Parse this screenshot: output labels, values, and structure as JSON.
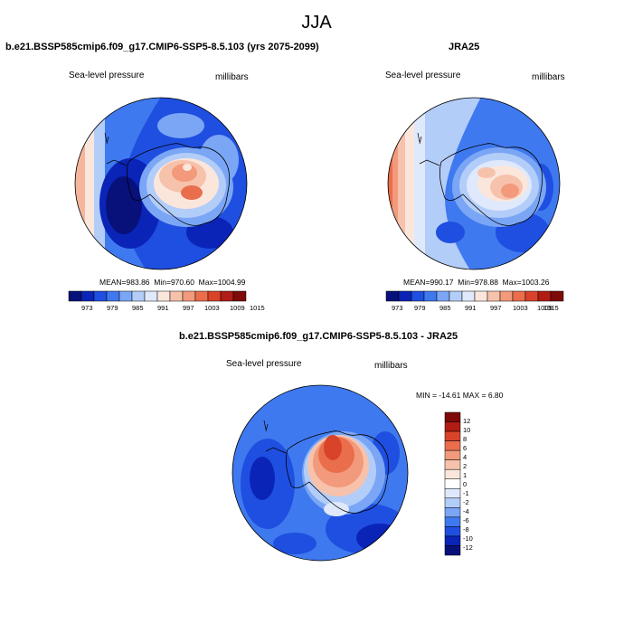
{
  "figure": {
    "title": "JJA"
  },
  "panels": [
    {
      "id": "model",
      "title": "b.e21.BSSP585cmip6.f09_g17.CMIP6-SSP5-8.5.103 (yrs 2075-2099)",
      "left_label": "Sea-level pressure",
      "right_label": "millibars",
      "stats": {
        "mean_label": "MEAN=",
        "mean": "983.86",
        "min_label": "Min=",
        "min": "970.60",
        "max_label": "Max=",
        "max": "1004.99"
      },
      "colorbar_ticks": [
        "973",
        "979",
        "985",
        "991",
        "997",
        "1003",
        "1009",
        "1015"
      ]
    },
    {
      "id": "obs",
      "title": "JRA25",
      "left_label": "Sea-level pressure",
      "right_label": "millibars",
      "stats": {
        "mean_label": "MEAN=",
        "mean": "990.17",
        "min_label": "Min=",
        "min": "978.88",
        "max_label": "Max=",
        "max": "1003.26"
      },
      "colorbar_ticks": [
        "973",
        "979",
        "985",
        "991",
        "997",
        "1003",
        "1009",
        "1015"
      ]
    },
    {
      "id": "diff",
      "title": "b.e21.BSSP585cmip6.f09_g17.CMIP6-SSP5-8.5.103 - JRA25",
      "left_label": "Sea-level pressure",
      "right_label": "millibars",
      "minmax": "MIN = -14.61 MAX =   6.80",
      "colorbar_ticks": [
        "12",
        "10",
        "8",
        "6",
        "4",
        "2",
        "1",
        "0",
        "-1",
        "-2",
        "-4",
        "-6",
        "-8",
        "-10",
        "-12"
      ]
    }
  ],
  "colors": {
    "abs_scale": [
      "#08107a",
      "#0b24b8",
      "#1f4fe0",
      "#3f79ef",
      "#7aa6f5",
      "#b3cdf9",
      "#dfe9fb",
      "#fbe6dc",
      "#f7c2ab",
      "#f29a7b",
      "#ea6e4c",
      "#d9432a",
      "#b11c14",
      "#7e0a0a"
    ],
    "diff_scale": [
      "#7e0a0a",
      "#b11c14",
      "#d9432a",
      "#ea6e4c",
      "#f29a7b",
      "#f7c2ab",
      "#fbe6dc",
      "#ffffff",
      "#dfe9fb",
      "#b3cdf9",
      "#7aa6f5",
      "#3f79ef",
      "#1f4fe0",
      "#0b24b8",
      "#08107a"
    ]
  }
}
